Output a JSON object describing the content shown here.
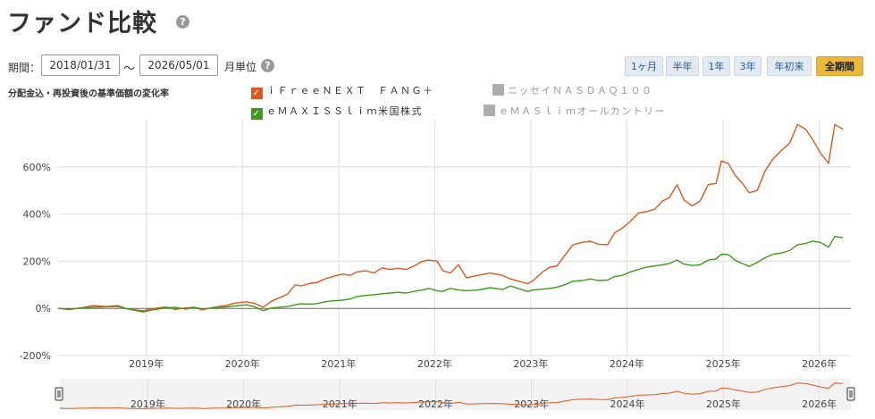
{
  "page": {
    "title": "ファンド比較",
    "period_label": "期間：",
    "date_from": "2018/01/31",
    "tilde": "〜",
    "date_to": "2026/05/01",
    "unit_label": "月単位",
    "subtitle": "分配金込・再投資後の基準価額の変化率",
    "help_glyph": "?",
    "check_glyph": "✓"
  },
  "range_buttons": [
    {
      "label": "1ヶ月",
      "active": false
    },
    {
      "label": "半年",
      "active": false
    },
    {
      "label": "1年",
      "active": false
    },
    {
      "label": "3年",
      "active": false
    },
    {
      "label": "年初来",
      "active": false
    },
    {
      "label": "全期間",
      "active": true
    }
  ],
  "legend": [
    {
      "label": "ｉＦｒｅｅＮＥＸＴ　ＦＡＮＧ＋",
      "color": "#d95a1f",
      "checked": true
    },
    {
      "label": "ニッセイＮＡＳＤＡＱ１００",
      "color": "#a9aeb2",
      "checked": false
    },
    {
      "label": "ｅＭＡＸＩＳＳｌｉｍ米国株式",
      "color": "#3f9a1a",
      "checked": true
    },
    {
      "label": "ｅＭＡＳｌｉｍオールカントリー",
      "color": "#a9aeb2",
      "checked": false
    }
  ],
  "chart_data": {
    "type": "line",
    "xlim": [
      "2018-01-31",
      "2026-05-01"
    ],
    "ylim": [
      -200,
      800
    ],
    "y_ticks": [
      -200,
      0,
      200,
      400,
      600
    ],
    "y_tick_labels": [
      "-200%",
      "0%",
      "200%",
      "400%",
      "600%"
    ],
    "x_ticks": [
      "2019-01-01",
      "2020-01-01",
      "2021-01-01",
      "2022-01-01",
      "2023-01-01",
      "2024-01-01",
      "2025-01-01",
      "2026-01-01"
    ],
    "x_tick_labels": [
      "2019年",
      "2020年",
      "2021年",
      "2022年",
      "2023年",
      "2024年",
      "2025年",
      "2026年"
    ],
    "grid": true,
    "legend_position": "top",
    "navigator": true,
    "series": [
      {
        "name": "ｉＦｒｅｅＮＥＸＴ　ＦＡＮＧ＋",
        "color": "#d95a1f",
        "points": [
          [
            "2018-01-31",
            0
          ],
          [
            "2018-03-15",
            -5
          ],
          [
            "2018-05-01",
            3
          ],
          [
            "2018-06-15",
            12
          ],
          [
            "2018-08-01",
            8
          ],
          [
            "2018-09-15",
            12
          ],
          [
            "2018-10-20",
            -2
          ],
          [
            "2018-12-20",
            -10
          ],
          [
            "2019-02-01",
            0
          ],
          [
            "2019-03-15",
            6
          ],
          [
            "2019-04-20",
            -4
          ],
          [
            "2019-06-01",
            2
          ],
          [
            "2019-07-01",
            5
          ],
          [
            "2019-08-01",
            -6
          ],
          [
            "2019-09-15",
            5
          ],
          [
            "2019-11-01",
            12
          ],
          [
            "2019-12-01",
            22
          ],
          [
            "2020-01-15",
            28
          ],
          [
            "2020-02-15",
            22
          ],
          [
            "2020-03-20",
            5
          ],
          [
            "2020-04-20",
            30
          ],
          [
            "2020-05-20",
            45
          ],
          [
            "2020-06-20",
            60
          ],
          [
            "2020-07-20",
            100
          ],
          [
            "2020-08-10",
            95
          ],
          [
            "2020-09-10",
            105
          ],
          [
            "2020-10-10",
            110
          ],
          [
            "2020-11-10",
            125
          ],
          [
            "2020-12-10",
            135
          ],
          [
            "2021-01-15",
            145
          ],
          [
            "2021-02-15",
            140
          ],
          [
            "2021-03-10",
            155
          ],
          [
            "2021-04-15",
            160
          ],
          [
            "2021-05-15",
            150
          ],
          [
            "2021-06-15",
            172
          ],
          [
            "2021-07-15",
            165
          ],
          [
            "2021-08-15",
            170
          ],
          [
            "2021-09-15",
            165
          ],
          [
            "2021-10-15",
            180
          ],
          [
            "2021-11-15",
            200
          ],
          [
            "2021-12-10",
            205
          ],
          [
            "2022-01-10",
            200
          ],
          [
            "2022-02-01",
            160
          ],
          [
            "2022-03-01",
            150
          ],
          [
            "2022-04-01",
            185
          ],
          [
            "2022-05-01",
            130
          ],
          [
            "2022-06-15",
            140
          ],
          [
            "2022-08-01",
            150
          ],
          [
            "2022-09-15",
            140
          ],
          [
            "2022-10-15",
            125
          ],
          [
            "2022-12-20",
            105
          ],
          [
            "2023-01-10",
            118
          ],
          [
            "2023-02-15",
            155
          ],
          [
            "2023-03-15",
            175
          ],
          [
            "2023-04-10",
            180
          ],
          [
            "2023-05-10",
            225
          ],
          [
            "2023-06-10",
            270
          ],
          [
            "2023-07-15",
            280
          ],
          [
            "2023-08-15",
            285
          ],
          [
            "2023-09-15",
            272
          ],
          [
            "2023-10-20",
            270
          ],
          [
            "2023-11-15",
            320
          ],
          [
            "2023-12-15",
            340
          ],
          [
            "2024-01-15",
            370
          ],
          [
            "2024-02-15",
            405
          ],
          [
            "2024-03-15",
            410
          ],
          [
            "2024-04-15",
            420
          ],
          [
            "2024-05-15",
            455
          ],
          [
            "2024-06-10",
            470
          ],
          [
            "2024-07-10",
            525
          ],
          [
            "2024-08-05",
            460
          ],
          [
            "2024-09-05",
            435
          ],
          [
            "2024-10-05",
            455
          ],
          [
            "2024-11-05",
            525
          ],
          [
            "2024-12-05",
            530
          ],
          [
            "2024-12-25",
            625
          ],
          [
            "2025-01-20",
            615
          ],
          [
            "2025-02-15",
            565
          ],
          [
            "2025-03-15",
            530
          ],
          [
            "2025-04-10",
            490
          ],
          [
            "2025-05-10",
            500
          ],
          [
            "2025-06-10",
            585
          ],
          [
            "2025-07-10",
            635
          ],
          [
            "2025-08-10",
            670
          ],
          [
            "2025-09-10",
            700
          ],
          [
            "2025-10-10",
            780
          ],
          [
            "2025-11-10",
            760
          ],
          [
            "2025-12-05",
            720
          ],
          [
            "2026-01-05",
            660
          ],
          [
            "2026-02-05",
            615
          ],
          [
            "2026-03-01",
            780
          ],
          [
            "2026-04-01",
            760
          ]
        ]
      },
      {
        "name": "ｅＭＡＸＩＳＳｌｉｍ米国株式",
        "color": "#3f9a1a",
        "points": [
          [
            "2018-01-31",
            0
          ],
          [
            "2018-03-15",
            -3
          ],
          [
            "2018-05-01",
            2
          ],
          [
            "2018-06-15",
            5
          ],
          [
            "2018-08-01",
            7
          ],
          [
            "2018-09-15",
            8
          ],
          [
            "2018-10-20",
            -2
          ],
          [
            "2018-12-20",
            -15
          ],
          [
            "2019-02-01",
            -5
          ],
          [
            "2019-03-15",
            2
          ],
          [
            "2019-04-20",
            5
          ],
          [
            "2019-06-01",
            -3
          ],
          [
            "2019-07-01",
            5
          ],
          [
            "2019-08-01",
            -2
          ],
          [
            "2019-09-15",
            2
          ],
          [
            "2019-11-01",
            6
          ],
          [
            "2019-12-01",
            10
          ],
          [
            "2020-01-15",
            15
          ],
          [
            "2020-02-15",
            8
          ],
          [
            "2020-03-20",
            -10
          ],
          [
            "2020-04-20",
            2
          ],
          [
            "2020-05-20",
            5
          ],
          [
            "2020-06-20",
            8
          ],
          [
            "2020-07-20",
            15
          ],
          [
            "2020-08-10",
            20
          ],
          [
            "2020-09-10",
            18
          ],
          [
            "2020-10-10",
            20
          ],
          [
            "2020-11-10",
            28
          ],
          [
            "2020-12-10",
            32
          ],
          [
            "2021-01-15",
            35
          ],
          [
            "2021-02-15",
            40
          ],
          [
            "2021-03-10",
            50
          ],
          [
            "2021-04-15",
            55
          ],
          [
            "2021-05-15",
            58
          ],
          [
            "2021-06-15",
            62
          ],
          [
            "2021-07-15",
            65
          ],
          [
            "2021-08-15",
            68
          ],
          [
            "2021-09-15",
            65
          ],
          [
            "2021-10-15",
            72
          ],
          [
            "2021-11-15",
            78
          ],
          [
            "2021-12-10",
            85
          ],
          [
            "2022-01-10",
            75
          ],
          [
            "2022-02-01",
            72
          ],
          [
            "2022-03-01",
            85
          ],
          [
            "2022-04-01",
            78
          ],
          [
            "2022-05-01",
            75
          ],
          [
            "2022-06-15",
            78
          ],
          [
            "2022-08-01",
            88
          ],
          [
            "2022-09-15",
            80
          ],
          [
            "2022-10-15",
            95
          ],
          [
            "2022-12-20",
            72
          ],
          [
            "2023-01-10",
            78
          ],
          [
            "2023-02-15",
            82
          ],
          [
            "2023-03-15",
            85
          ],
          [
            "2023-04-10",
            90
          ],
          [
            "2023-05-10",
            100
          ],
          [
            "2023-06-10",
            115
          ],
          [
            "2023-07-15",
            118
          ],
          [
            "2023-08-15",
            125
          ],
          [
            "2023-09-15",
            118
          ],
          [
            "2023-10-20",
            120
          ],
          [
            "2023-11-15",
            135
          ],
          [
            "2023-12-15",
            140
          ],
          [
            "2024-01-15",
            155
          ],
          [
            "2024-02-15",
            165
          ],
          [
            "2024-03-15",
            175
          ],
          [
            "2024-04-15",
            180
          ],
          [
            "2024-05-15",
            185
          ],
          [
            "2024-06-10",
            190
          ],
          [
            "2024-07-10",
            205
          ],
          [
            "2024-08-05",
            188
          ],
          [
            "2024-09-05",
            182
          ],
          [
            "2024-10-05",
            185
          ],
          [
            "2024-11-05",
            205
          ],
          [
            "2024-12-05",
            210
          ],
          [
            "2024-12-25",
            230
          ],
          [
            "2025-01-20",
            228
          ],
          [
            "2025-02-15",
            205
          ],
          [
            "2025-03-15",
            190
          ],
          [
            "2025-04-10",
            178
          ],
          [
            "2025-05-10",
            195
          ],
          [
            "2025-06-10",
            215
          ],
          [
            "2025-07-10",
            230
          ],
          [
            "2025-08-10",
            235
          ],
          [
            "2025-09-10",
            245
          ],
          [
            "2025-10-10",
            270
          ],
          [
            "2025-11-10",
            275
          ],
          [
            "2025-12-05",
            285
          ],
          [
            "2026-01-05",
            280
          ],
          [
            "2026-02-05",
            260
          ],
          [
            "2026-03-01",
            305
          ],
          [
            "2026-04-01",
            300
          ]
        ]
      }
    ]
  }
}
